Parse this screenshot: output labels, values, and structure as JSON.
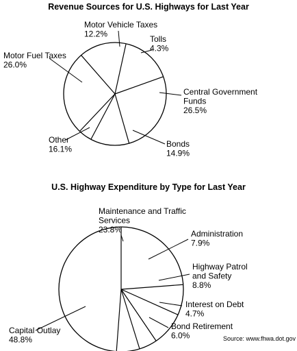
{
  "chart_data": [
    {
      "type": "pie",
      "title": "Revenue Sources for U.S. Highways for Last Year",
      "slices": [
        {
          "label": [
            "Motor Vehicle Taxes"
          ],
          "value_label": "12.2%",
          "value": 12.2
        },
        {
          "label": [
            "Tolls"
          ],
          "value_label": "4.3%",
          "value": 4.3
        },
        {
          "label": [
            "Central Government",
            "Funds"
          ],
          "value_label": "26.5%",
          "value": 26.5
        },
        {
          "label": [
            "Bonds"
          ],
          "value_label": "14.9%",
          "value": 14.9
        },
        {
          "label": [
            "Other"
          ],
          "value_label": "16.1%",
          "value": 16.1
        },
        {
          "label": [
            "Motor Fuel Taxes"
          ],
          "value_label": "26.0%",
          "value": 26.0
        }
      ]
    },
    {
      "type": "pie",
      "title": "U.S. Highway Expenditure by Type for Last Year",
      "slices": [
        {
          "label": [
            "Maintenance and Traffic",
            "Services"
          ],
          "value_label": "23.8%",
          "value": 23.8
        },
        {
          "label": [
            "Administration"
          ],
          "value_label": "7.9%",
          "value": 7.9
        },
        {
          "label": [
            "Highway Patrol",
            "and Safety"
          ],
          "value_label": "8.8%",
          "value": 8.8
        },
        {
          "label": [
            "Interest on Debt"
          ],
          "value_label": "4.7%",
          "value": 4.7
        },
        {
          "label": [
            "Bond Retirement"
          ],
          "value_label": "6.0%",
          "value": 6.0
        },
        {
          "label": [
            "Capital Outlay"
          ],
          "value_label": "48.8%",
          "value": 48.8
        }
      ]
    }
  ],
  "source": "Source: www.fhwa.dot.gov"
}
